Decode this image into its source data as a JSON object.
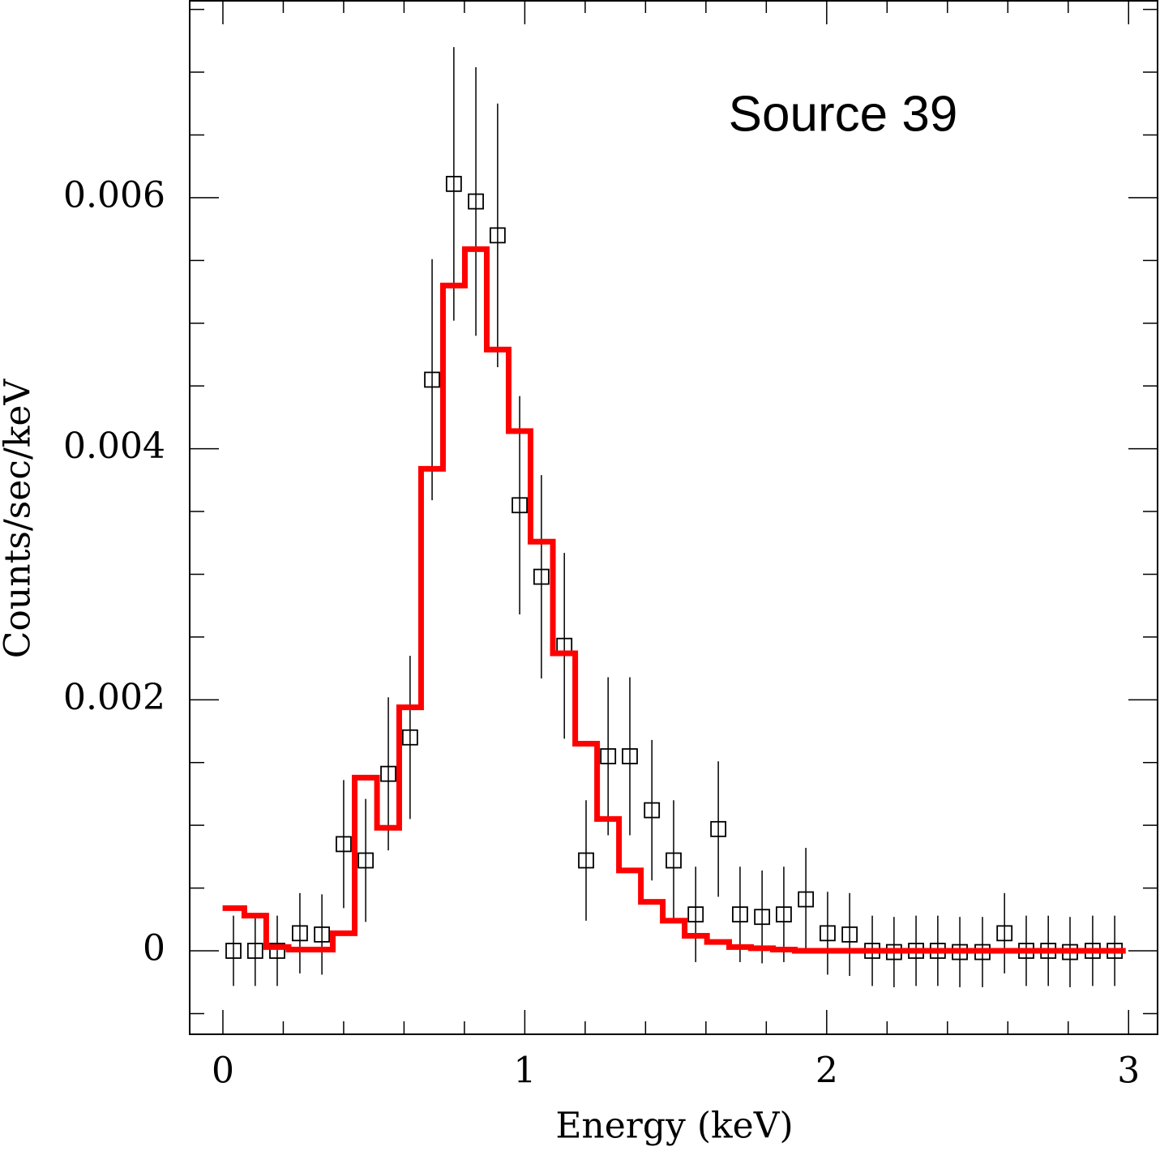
{
  "chart_data": {
    "type": "scatter",
    "title": "Source 39",
    "xlabel": "Energy (keV)",
    "ylabel": "Counts/sec/keV",
    "xlim": [
      -0.11,
      3.096
    ],
    "ylim": [
      -0.000665,
      0.007575
    ],
    "xticks": [
      0,
      1,
      2,
      3
    ],
    "yticks": [
      0,
      0.002,
      0.004,
      0.006
    ],
    "xminorticks": [
      0.2,
      0.4,
      0.6,
      0.8,
      1.2,
      1.4,
      1.6,
      1.8,
      2.2,
      2.4,
      2.6,
      2.8
    ],
    "yminorticks": [
      -0.0005,
      0.0005,
      0.001,
      0.0015,
      0.0025,
      0.003,
      0.0035,
      0.0045,
      0.005,
      0.0055,
      0.0065,
      0.007,
      0.0075
    ],
    "series": [
      {
        "type": "errorbar",
        "color": "#000000",
        "x": [
          0.035,
          0.107,
          0.18,
          0.255,
          0.328,
          0.4,
          0.473,
          0.548,
          0.62,
          0.693,
          0.765,
          0.838,
          0.91,
          0.983,
          1.055,
          1.131,
          1.203,
          1.276,
          1.348,
          1.421,
          1.493,
          1.566,
          1.641,
          1.713,
          1.786,
          1.858,
          1.931,
          2.003,
          2.076,
          2.151,
          2.223,
          2.296,
          2.368,
          2.441,
          2.516,
          2.589,
          2.661,
          2.734,
          2.806,
          2.881,
          2.954
        ],
        "values": [
          0,
          0,
          0,
          0.00014,
          0.00013,
          0.00085,
          0.00072,
          0.00141,
          0.0017,
          0.00455,
          0.00611,
          0.00597,
          0.0057,
          0.00355,
          0.00298,
          0.00243,
          0.00072,
          0.00155,
          0.00155,
          0.00112,
          0.00072,
          0.00029,
          0.00097,
          0.00029,
          0.00027,
          0.00029,
          0.00041,
          0.00014,
          0.00013,
          0,
          -1e-05,
          0,
          0,
          -1e-05,
          -1e-05,
          0.00014,
          0,
          0,
          -1e-05,
          0,
          0
        ],
        "errors": [
          0.00028,
          0.00028,
          0.00028,
          0.00032,
          0.00032,
          0.00051,
          0.00049,
          0.00061,
          0.00065,
          0.00096,
          0.00109,
          0.00107,
          0.00105,
          0.00087,
          0.00081,
          0.00074,
          0.00048,
          0.00063,
          0.00063,
          0.00056,
          0.00048,
          0.00038,
          0.00054,
          0.00038,
          0.00037,
          0.00038,
          0.00041,
          0.00033,
          0.00033,
          0.00028,
          0.00028,
          0.00028,
          0.00028,
          0.00028,
          0.00028,
          0.00032,
          0.00028,
          0.00028,
          0.00028,
          0.00028,
          0.00028
        ]
      },
      {
        "type": "step",
        "color": "#ff0000",
        "x": [
          0.035,
          0.107,
          0.18,
          0.255,
          0.328,
          0.4,
          0.473,
          0.548,
          0.62,
          0.693,
          0.765,
          0.838,
          0.91,
          0.983,
          1.055,
          1.131,
          1.203,
          1.276,
          1.348,
          1.421,
          1.493,
          1.566,
          1.641,
          1.713,
          1.786,
          1.858,
          1.931,
          2.003,
          2.076,
          2.151,
          2.223,
          2.296,
          2.368,
          2.441,
          2.516,
          2.589,
          2.661,
          2.734,
          2.806,
          2.881,
          2.954
        ],
        "values": [
          0.00034,
          0.00028,
          3e-05,
          1e-05,
          1e-05,
          0.00014,
          0.00138,
          0.00098,
          0.00194,
          0.00384,
          0.0053,
          0.00559,
          0.00479,
          0.00414,
          0.00326,
          0.00237,
          0.00165,
          0.00105,
          0.00064,
          0.00039,
          0.00024,
          0.00012,
          7e-05,
          3e-05,
          2e-05,
          1e-05,
          0,
          0,
          0,
          0,
          0,
          0,
          0,
          0,
          0,
          0,
          0,
          0,
          0,
          0,
          0
        ]
      }
    ]
  }
}
